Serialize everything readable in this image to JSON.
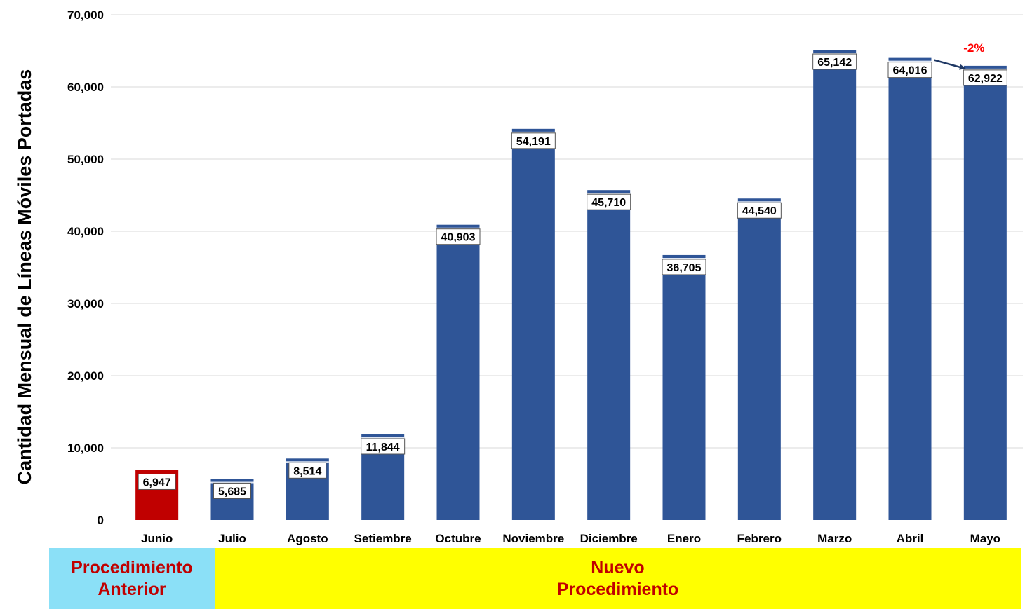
{
  "chart_data": {
    "type": "bar",
    "title": "",
    "xlabel": "",
    "ylabel": "Cantidad Mensual de Líneas Móviles Portadas",
    "ylim": [
      0,
      70000
    ],
    "yticks": [
      "0",
      "10,000",
      "20,000",
      "30,000",
      "40,000",
      "50,000",
      "60,000",
      "70,000"
    ],
    "grid": true,
    "categories": [
      "Junio",
      "Julio",
      "Agosto",
      "Setiembre",
      "Octubre",
      "Noviembre",
      "Diciembre",
      "Enero",
      "Febrero",
      "Marzo",
      "Abril",
      "Mayo"
    ],
    "values": [
      6947,
      5685,
      8514,
      11844,
      40903,
      54191,
      45710,
      36705,
      44540,
      65142,
      64016,
      62922
    ],
    "data_labels": [
      "6,947",
      "5,685",
      "8,514",
      "11,844",
      "40,903",
      "54,191",
      "45,710",
      "36,705",
      "44,540",
      "65,142",
      "64,016",
      "62,922"
    ],
    "bar_colors": [
      "#c00000",
      "#2f5597",
      "#2f5597",
      "#2f5597",
      "#2f5597",
      "#2f5597",
      "#2f5597",
      "#2f5597",
      "#2f5597",
      "#2f5597",
      "#2f5597",
      "#2f5597"
    ],
    "annotation": {
      "text": "-2%",
      "from_category": "Abril",
      "to_category": "Mayo",
      "text_color": "#ff0000",
      "arrow_color": "#1f3864"
    }
  },
  "bands": [
    {
      "lines": [
        "Procedimiento",
        "Anterior"
      ],
      "background": "#8be0f7",
      "text_color": "#c00000"
    },
    {
      "lines": [
        "Nuevo",
        "Procedimiento"
      ],
      "background": "#ffff00",
      "text_color": "#c00000"
    }
  ]
}
